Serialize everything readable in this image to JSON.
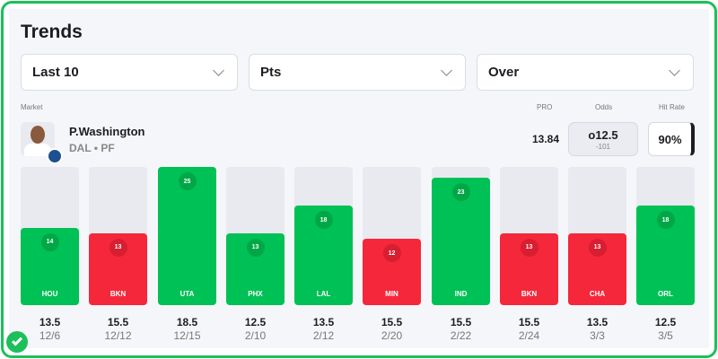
{
  "title": "Trends",
  "filters": [
    {
      "value": "Last 10"
    },
    {
      "value": "Pts"
    },
    {
      "value": "Over"
    }
  ],
  "labels": {
    "market": "Market",
    "pro": "PRO",
    "odds": "Odds",
    "hit_rate": "Hit Rate"
  },
  "player": {
    "name": "P.Washington",
    "team_pos": "DAL • PF"
  },
  "pro_value": "13.84",
  "odds": {
    "line": "o12.5",
    "price": "-101"
  },
  "hit_rate": "90%",
  "colors": {
    "hit": "#00c155",
    "miss": "#f5273a",
    "hit_badge": "#00a746",
    "miss_badge": "#d81e31"
  },
  "chart_data": {
    "type": "bar",
    "ylim": [
      0,
      25
    ],
    "games": [
      {
        "opp": "HOU",
        "value": 14,
        "line": "13.5",
        "date": "12/6",
        "result": "hit"
      },
      {
        "opp": "BKN",
        "value": 13,
        "line": "15.5",
        "date": "12/12",
        "result": "miss"
      },
      {
        "opp": "UTA",
        "value": 25,
        "line": "18.5",
        "date": "12/15",
        "result": "hit"
      },
      {
        "opp": "PHX",
        "value": 13,
        "line": "12.5",
        "date": "2/10",
        "result": "hit"
      },
      {
        "opp": "LAL",
        "value": 18,
        "line": "13.5",
        "date": "2/12",
        "result": "hit"
      },
      {
        "opp": "MIN",
        "value": 12,
        "line": "15.5",
        "date": "2/20",
        "result": "miss"
      },
      {
        "opp": "IND",
        "value": 23,
        "line": "15.5",
        "date": "2/22",
        "result": "hit"
      },
      {
        "opp": "BKN",
        "value": 13,
        "line": "15.5",
        "date": "2/24",
        "result": "miss"
      },
      {
        "opp": "CHA",
        "value": 13,
        "line": "13.5",
        "date": "3/3",
        "result": "miss"
      },
      {
        "opp": "ORL",
        "value": 18,
        "line": "12.5",
        "date": "3/5",
        "result": "hit"
      }
    ]
  }
}
